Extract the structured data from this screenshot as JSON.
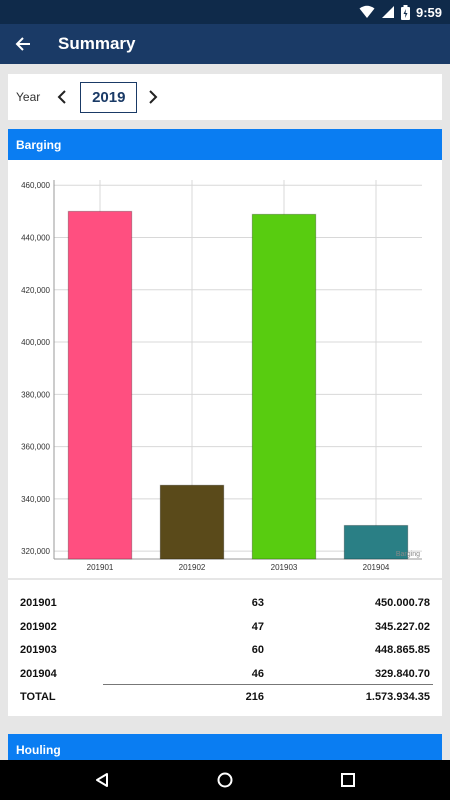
{
  "status_bar": {
    "time": "9:59"
  },
  "app_bar": {
    "title": "Summary"
  },
  "year_selector": {
    "label": "Year",
    "value": "2019"
  },
  "barging": {
    "header": "Barging",
    "legend_label": "Barging",
    "rows": [
      {
        "period": "201901",
        "count": "63",
        "amount": "450.000.78"
      },
      {
        "period": "201902",
        "count": "47",
        "amount": "345.227.02"
      },
      {
        "period": "201903",
        "count": "60",
        "amount": "448.865.85"
      },
      {
        "period": "201904",
        "count": "46",
        "amount": "329.840.70"
      }
    ],
    "total": {
      "label": "TOTAL",
      "count": "216",
      "amount": "1.573.934.35"
    }
  },
  "houling": {
    "header": "Houling"
  },
  "chart_data": {
    "type": "bar",
    "categories": [
      "201901",
      "201902",
      "201903",
      "201904"
    ],
    "values": [
      450000.78,
      345227.02,
      448865.85,
      329840.7
    ],
    "colors": [
      "#ff4f80",
      "#5a4a1a",
      "#58cc10",
      "#2a7f85"
    ],
    "yticks": [
      "320,000",
      "340,000",
      "360,000",
      "380,000",
      "400,000",
      "420,000",
      "440,000",
      "460,000"
    ],
    "ylim": [
      317000,
      462000
    ],
    "grid": true,
    "legend": "Barging"
  }
}
